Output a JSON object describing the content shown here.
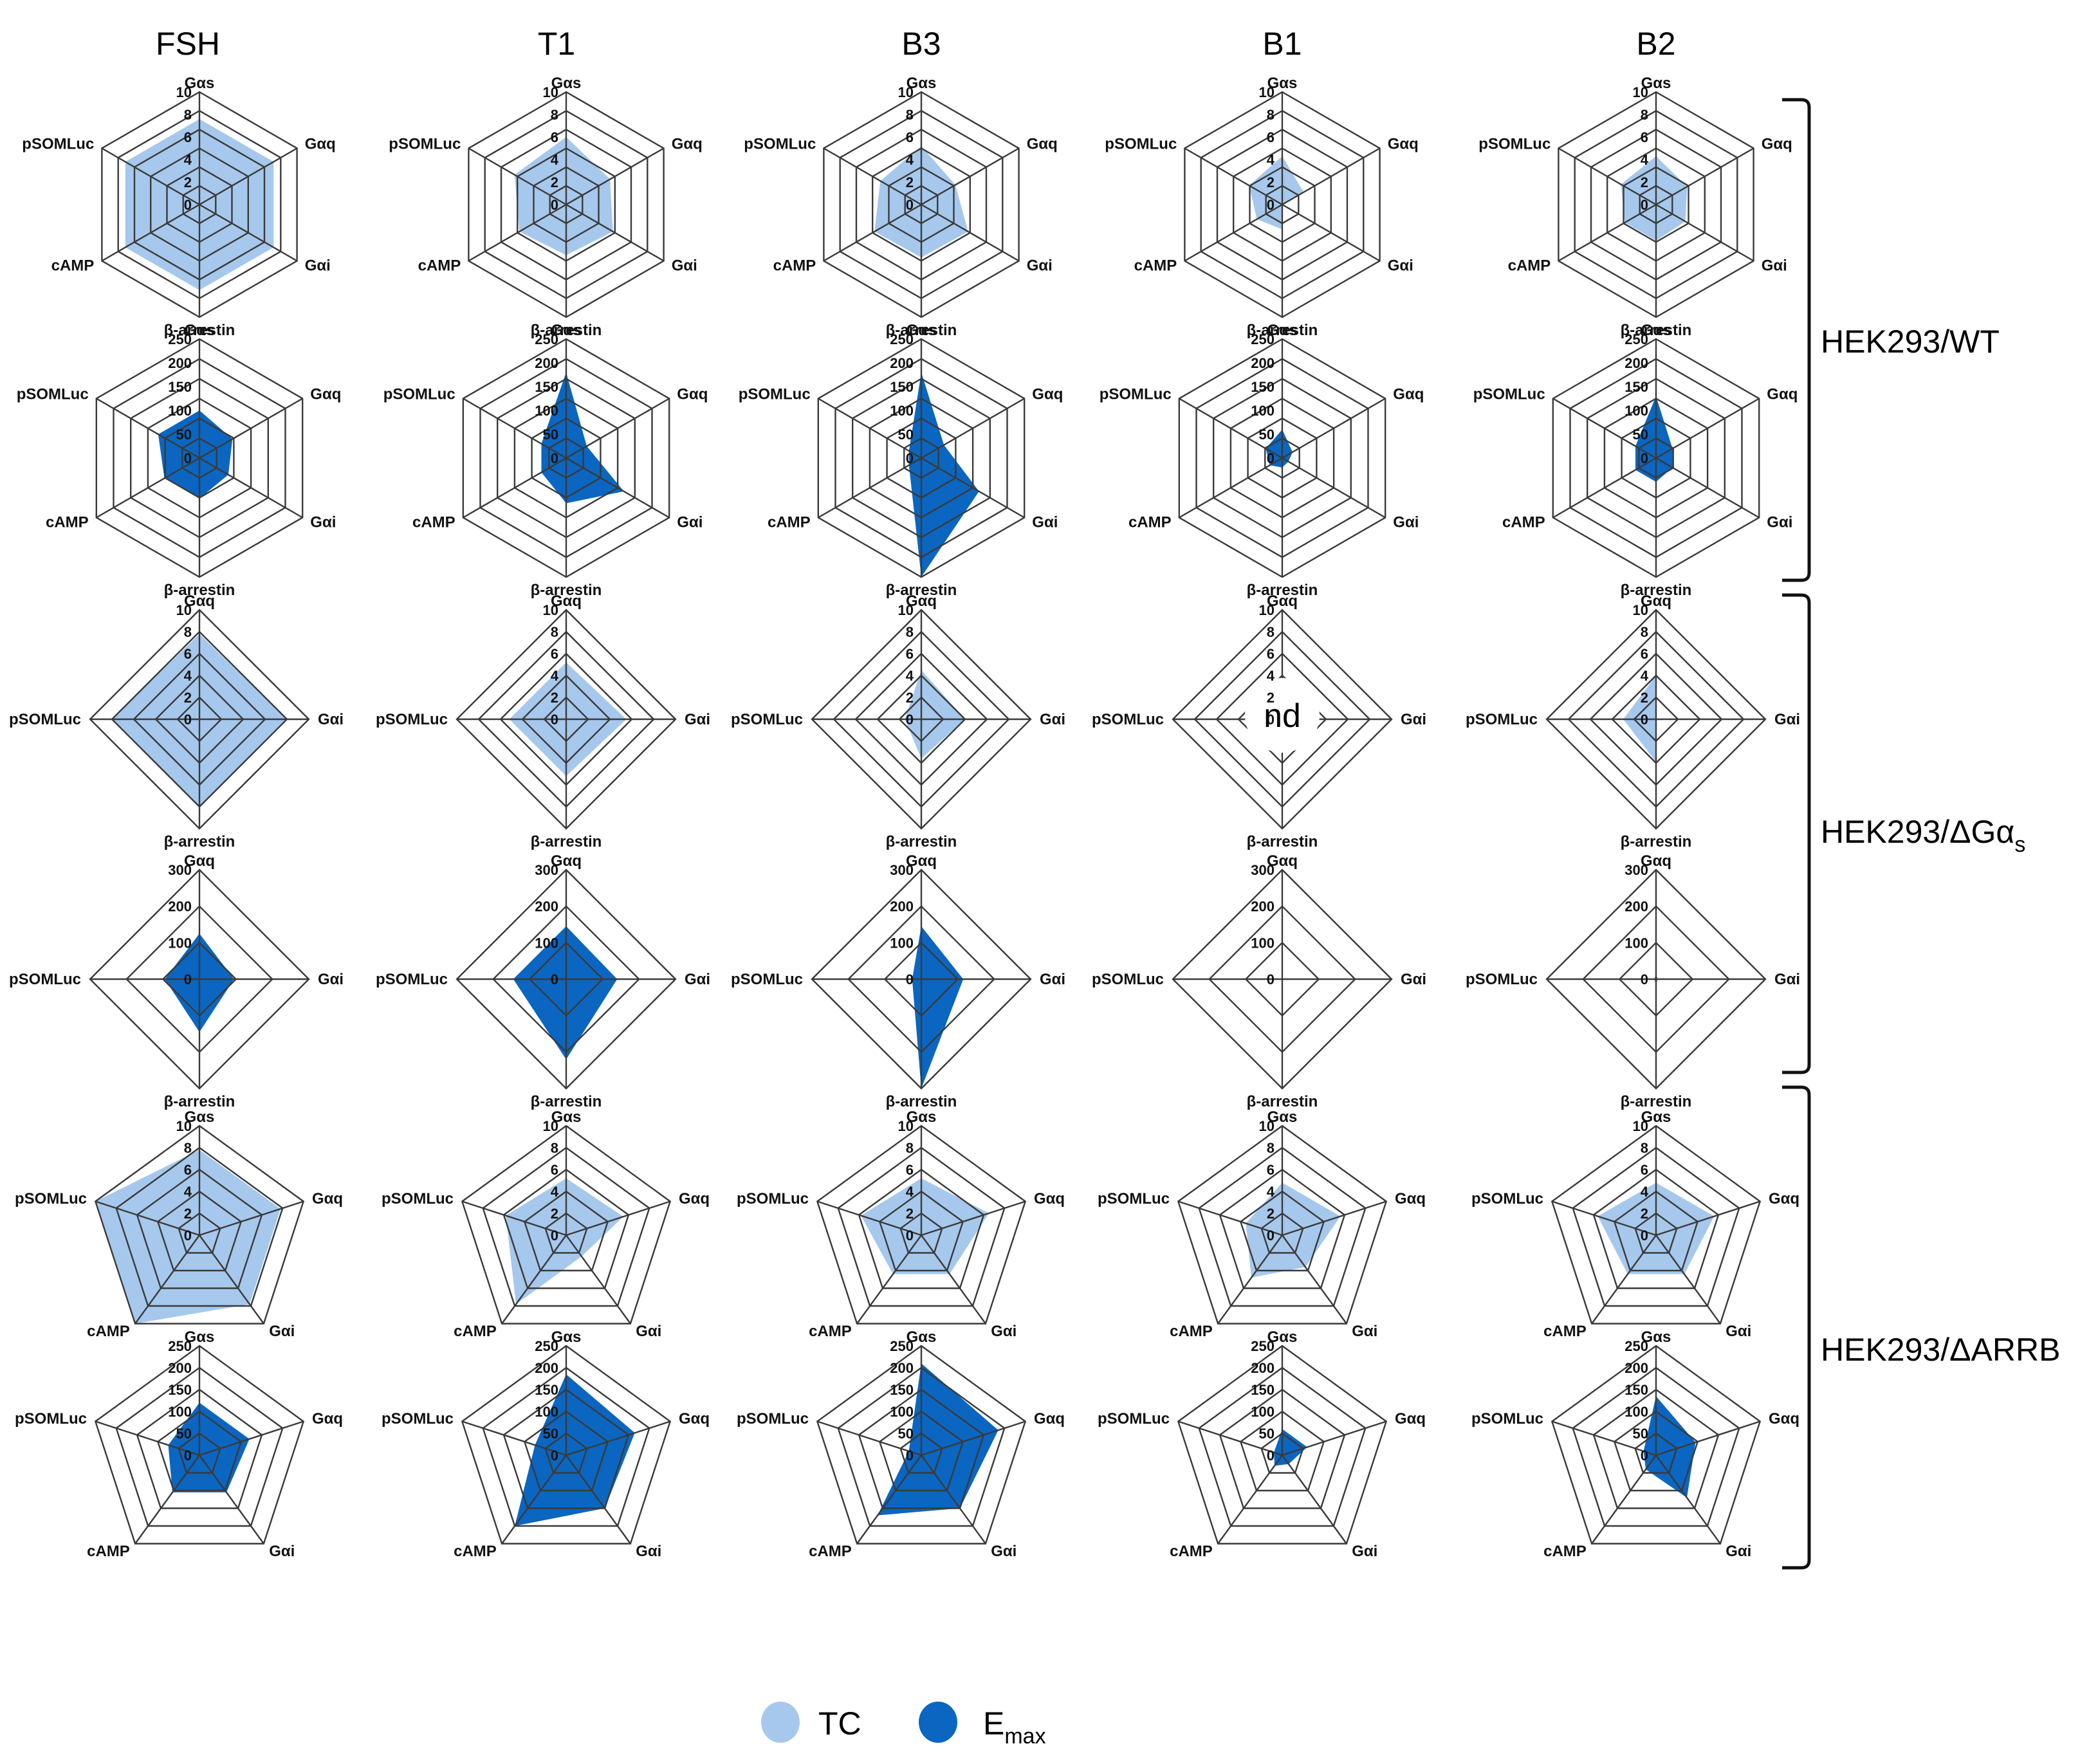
{
  "colors": {
    "tc": "#a6c8ec",
    "emax": "#0a66c0",
    "grid": "#3a3a3a",
    "text": "#000000"
  },
  "columns": [
    "FSH",
    "T1",
    "B3",
    "B1",
    "B2"
  ],
  "row_labels": [
    {
      "text": "HEK293/WT",
      "sub": ""
    },
    {
      "text": "HEK293/ΔGα",
      "sub": "s"
    },
    {
      "text": "HEK293/ΔARRB",
      "sub": ""
    }
  ],
  "legend": [
    {
      "label": "TC",
      "sub": "",
      "color_key": "tc"
    },
    {
      "label": "E",
      "sub": "max",
      "color_key": "emax"
    }
  ],
  "annotations": {
    "not_determined": "nd"
  },
  "axis_sets": {
    "wt": [
      "Gαs",
      "Gαq",
      "Gαi",
      "β-arrestin",
      "cAMP",
      "pSOMLuc"
    ],
    "dgs": [
      "Gαq",
      "Gαi",
      "β-arrestin",
      "pSOMLuc"
    ],
    "darrb": [
      "Gαs",
      "Gαq",
      "Gαi",
      "cAMP",
      "pSOMLuc"
    ]
  },
  "tick_sets": {
    "tc": [
      "0",
      "2",
      "4",
      "6",
      "8",
      "10"
    ],
    "emax250": [
      "0",
      "50",
      "100",
      "150",
      "200",
      "250"
    ],
    "emax300": [
      "0",
      "100",
      "200",
      "300"
    ]
  },
  "chart_data": [
    {
      "type": "radar",
      "group": "HEK293/WT",
      "measure": "TC",
      "series": [
        {
          "name": "FSH",
          "values": [
            7.6,
            7.6,
            7.6,
            7.6,
            7.6,
            7.6
          ]
        },
        {
          "name": "T1",
          "values": [
            6,
            4.5,
            4.8,
            4.5,
            4.8,
            5.3
          ]
        },
        {
          "name": "B3",
          "values": [
            5.2,
            3.5,
            4.8,
            4.7,
            4.8,
            4.2
          ]
        },
        {
          "name": "B1",
          "values": [
            4.3,
            2.2,
            0,
            2.2,
            2.6,
            3.4
          ]
        },
        {
          "name": "B2",
          "values": [
            4.3,
            3.2,
            3.0,
            3.2,
            3.2,
            3.6
          ]
        }
      ]
    },
    {
      "type": "radar",
      "group": "HEK293/WT",
      "measure": "Emax",
      "series": [
        {
          "name": "FSH",
          "values": [
            100,
            80,
            70,
            85,
            85,
            100
          ]
        },
        {
          "name": "T1",
          "values": [
            180,
            50,
            140,
            95,
            60,
            60
          ]
        },
        {
          "name": "B3",
          "values": [
            180,
            55,
            140,
            250,
            30,
            30
          ]
        },
        {
          "name": "B1",
          "values": [
            60,
            25,
            15,
            20,
            30,
            40
          ]
        },
        {
          "name": "B2",
          "values": [
            130,
            40,
            40,
            50,
            50,
            50
          ]
        }
      ]
    },
    {
      "type": "radar",
      "group": "HEK293/ΔGαs",
      "measure": "TC",
      "series": [
        {
          "name": "FSH",
          "values": [
            7.8,
            8,
            8,
            8
          ]
        },
        {
          "name": "T1",
          "values": [
            5.2,
            5.5,
            5.2,
            5.2
          ]
        },
        {
          "name": "B3",
          "values": [
            4.5,
            4,
            3.6,
            1.5
          ]
        },
        {
          "name": "B1",
          "values": [
            0,
            0,
            0,
            0
          ]
        },
        {
          "name": "B2",
          "values": [
            4,
            0,
            3.9,
            3
          ]
        }
      ]
    },
    {
      "type": "radar",
      "group": "HEK293/ΔGαs",
      "measure": "Emax",
      "series": [
        {
          "name": "FSH",
          "values": [
            125,
            95,
            145,
            95
          ]
        },
        {
          "name": "T1",
          "values": [
            145,
            140,
            220,
            145
          ]
        },
        {
          "name": "B3",
          "values": [
            145,
            115,
            300,
            25
          ]
        },
        {
          "name": "B1",
          "values": [
            0,
            0,
            0,
            0
          ]
        },
        {
          "name": "B2",
          "values": [
            12,
            5,
            12,
            5
          ]
        }
      ]
    },
    {
      "type": "radar",
      "group": "HEK293/ΔARRB",
      "measure": "TC",
      "series": [
        {
          "name": "FSH",
          "values": [
            7.8,
            7.8,
            7.8,
            10,
            10
          ]
        },
        {
          "name": "T1",
          "values": [
            5.2,
            5.5,
            2.4,
            7.8,
            5.8
          ]
        },
        {
          "name": "B3",
          "values": [
            5.2,
            6.5,
            4.4,
            4.4,
            5.8
          ]
        },
        {
          "name": "B1",
          "values": [
            4.8,
            5.6,
            3.6,
            4.8,
            3.5
          ]
        },
        {
          "name": "B2",
          "values": [
            4.8,
            5.6,
            4.4,
            4.4,
            5.6
          ]
        }
      ]
    },
    {
      "type": "radar",
      "group": "HEK293/ΔARRB",
      "measure": "Emax",
      "series": [
        {
          "name": "FSH",
          "values": [
            120,
            120,
            105,
            105,
            75
          ]
        },
        {
          "name": "T1",
          "values": [
            185,
            165,
            150,
            200,
            75
          ]
        },
        {
          "name": "B3",
          "values": [
            210,
            185,
            150,
            170,
            30
          ]
        },
        {
          "name": "B1",
          "values": [
            60,
            60,
            25,
            30,
            20
          ]
        },
        {
          "name": "B2",
          "values": [
            135,
            95,
            120,
            40,
            30
          ]
        }
      ]
    }
  ]
}
